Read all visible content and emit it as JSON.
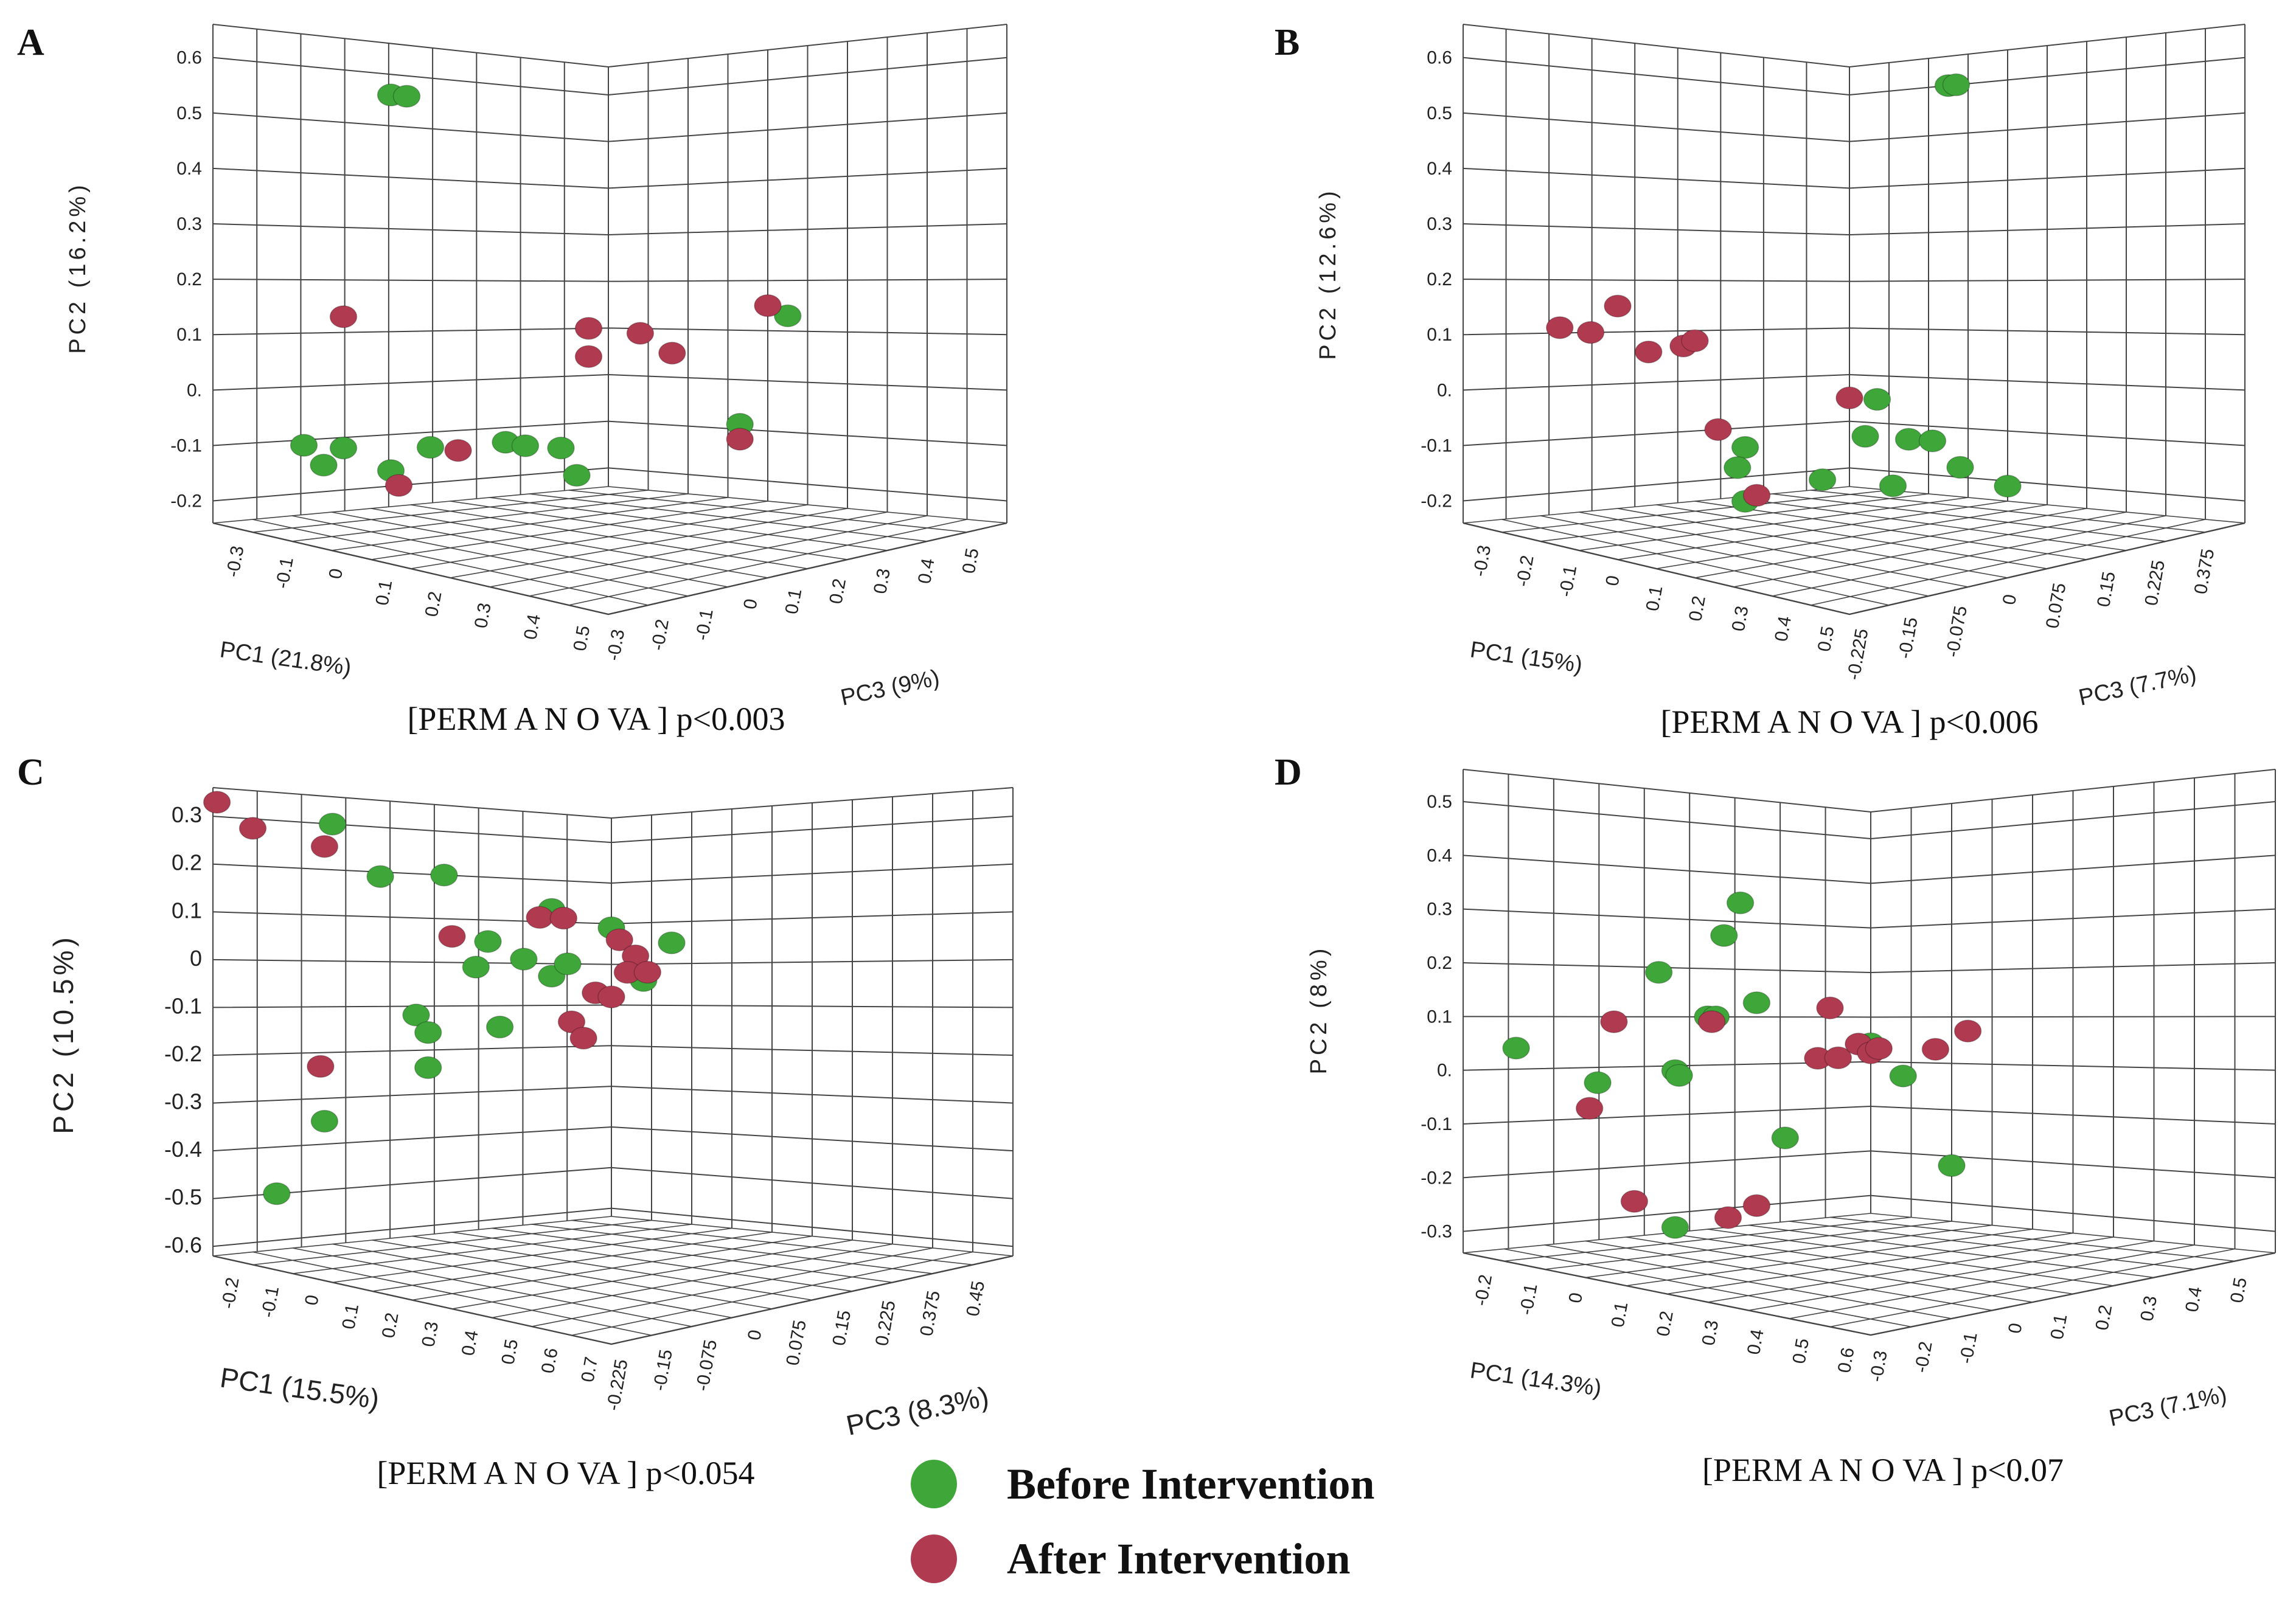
{
  "figure": {
    "type": "3d-pca-panels"
  },
  "colors": {
    "before": "#3fa63a",
    "after": "#b03a50",
    "grid": "#444444"
  },
  "legend": {
    "before_label": "Before Intervention",
    "after_label": "After Intervention"
  },
  "chart_data": [
    {
      "type": "scatter",
      "panel": "A",
      "caption": "[PERM A N O VA ] p<0.003",
      "axes": {
        "y": {
          "label": "PC2 (16.2%)",
          "ticks": [
            "0.6",
            "0.5",
            "0.4",
            "0.3",
            "0.2",
            "0.1",
            "0.",
            "-0.1",
            "-0.2"
          ]
        },
        "x": {
          "label": "PC1 (21.8%)",
          "ticks": [
            "-0.3",
            "-0.1",
            "0",
            "0.1",
            "0.2",
            "0.3",
            "0.4",
            "0.5"
          ]
        },
        "z": {
          "label": "PC3 (9%)",
          "ticks": [
            "-0.3",
            "-0.2",
            "-0.1",
            "0",
            "0.1",
            "0.2",
            "0.3",
            "0.4",
            "0.5"
          ]
        }
      },
      "groups": [
        {
          "name": "Before Intervention",
          "points": [
            {
              "pc2": 0.56,
              "u": 0.45,
              "v": 0.02
            },
            {
              "pc2": 0.56,
              "u": 0.49,
              "v": 0.02
            },
            {
              "pc2": -0.11,
              "u": 0.23,
              "v": 0.05
            },
            {
              "pc2": -0.12,
              "u": 0.33,
              "v": 0.07
            },
            {
              "pc2": -0.15,
              "u": 0.28,
              "v": 0.09
            },
            {
              "pc2": -0.17,
              "u": 0.45,
              "v": 0.09
            },
            {
              "pc2": -0.13,
              "u": 0.55,
              "v": 0.12
            },
            {
              "pc2": -0.13,
              "u": 0.74,
              "v": 0.12
            },
            {
              "pc2": -0.14,
              "u": 0.79,
              "v": 0.13
            },
            {
              "pc2": -0.15,
              "u": 0.88,
              "v": 0.12
            },
            {
              "pc2": -0.21,
              "u": 0.92,
              "v": 0.15
            },
            {
              "pc2": 0.13,
              "u": 1.0,
              "v": 0.45
            },
            {
              "pc2": -0.09,
              "u": 1.0,
              "v": 0.33
            }
          ]
        },
        {
          "name": "After Intervention",
          "points": [
            {
              "pc2": 0.13,
              "u": 0.33,
              "v": 0.0
            },
            {
              "pc2": -0.2,
              "u": 0.47,
              "v": 0.08
            },
            {
              "pc2": -0.14,
              "u": 0.62,
              "v": 0.09
            },
            {
              "pc2": 0.1,
              "u": 0.95,
              "v": 0.0
            },
            {
              "pc2": 0.04,
              "u": 0.95,
              "v": 0.02
            },
            {
              "pc2": 0.09,
              "u": 1.0,
              "v": 0.08
            },
            {
              "pc2": 0.05,
              "u": 1.0,
              "v": 0.16
            },
            {
              "pc2": 0.15,
              "u": 1.0,
              "v": 0.4
            },
            {
              "pc2": -0.12,
              "u": 1.0,
              "v": 0.33
            }
          ]
        }
      ]
    },
    {
      "type": "scatter",
      "panel": "B",
      "caption": "[PERM A N O VA ] p<0.006",
      "axes": {
        "y": {
          "label": "PC2 (12.6%)",
          "ticks": [
            "0.6",
            "0.5",
            "0.4",
            "0.3",
            "0.2",
            "0.1",
            "0.",
            "-0.1",
            "-0.2"
          ]
        },
        "x": {
          "label": "PC1 (15%)",
          "ticks": [
            "-0.3",
            "-0.2",
            "-0.1",
            "0",
            "0.1",
            "0.2",
            "0.3",
            "0.4",
            "0.5"
          ]
        },
        "z": {
          "label": "PC3 (7.7%)",
          "ticks": [
            "-0.225",
            "-0.15",
            "-0.075",
            "0",
            "0.075",
            "0.15",
            "0.225",
            "0.375"
          ]
        }
      },
      "groups": [
        {
          "name": "Before Intervention",
          "points": [
            {
              "pc2": 0.6,
              "u": 1.0,
              "v": 0.25
            },
            {
              "pc2": 0.6,
              "u": 1.0,
              "v": 0.27
            },
            {
              "pc2": -0.14,
              "u": 0.73,
              "v": 0.05
            },
            {
              "pc2": -0.18,
              "u": 0.71,
              "v": 0.06
            },
            {
              "pc2": -0.25,
              "u": 0.73,
              "v": 0.12
            },
            {
              "pc2": -0.22,
              "u": 0.93,
              "v": 0.12
            },
            {
              "pc2": -0.13,
              "u": 1.0,
              "v": 0.04
            },
            {
              "pc2": -0.05,
              "u": 1.0,
              "v": 0.07
            },
            {
              "pc2": -0.13,
              "u": 1.0,
              "v": 0.15
            },
            {
              "pc2": -0.13,
              "u": 1.0,
              "v": 0.21
            },
            {
              "pc2": -0.18,
              "u": 1.0,
              "v": 0.28
            },
            {
              "pc2": -0.21,
              "u": 1.0,
              "v": 0.4
            },
            {
              "pc2": -0.23,
              "u": 1.0,
              "v": 0.11
            }
          ]
        },
        {
          "name": "After Intervention",
          "points": [
            {
              "pc2": 0.11,
              "u": 0.25,
              "v": 0.0
            },
            {
              "pc2": 0.1,
              "u": 0.33,
              "v": 0.0
            },
            {
              "pc2": 0.15,
              "u": 0.4,
              "v": 0.0
            },
            {
              "pc2": 0.06,
              "u": 0.48,
              "v": 0.0
            },
            {
              "pc2": 0.07,
              "u": 0.57,
              "v": 0.0
            },
            {
              "pc2": 0.08,
              "u": 0.6,
              "v": 0.0
            },
            {
              "pc2": -0.1,
              "u": 0.66,
              "v": 0.0
            },
            {
              "pc2": -0.24,
              "u": 0.76,
              "v": 0.12
            },
            {
              "pc2": -0.05,
              "u": 1.0,
              "v": 0.0
            }
          ]
        }
      ]
    },
    {
      "type": "scatter",
      "panel": "C",
      "caption": "[PERM A N O VA ] p<0.054",
      "axes": {
        "y": {
          "label": "PC2 (10.5%)",
          "ticks": [
            "0.3",
            "0.2",
            "0.1",
            "0",
            "-0.1",
            "-0.2",
            "-0.3",
            "-0.4",
            "-0.5",
            "-0.6"
          ]
        },
        "x": {
          "label": "PC1 (15.5%)",
          "ticks": [
            "-0.2",
            "-0.1",
            "0",
            "0.1",
            "0.2",
            "0.3",
            "0.4",
            "0.5",
            "0.6",
            "0.7"
          ]
        },
        "z": {
          "label": "PC3 (8.3%)",
          "ticks": [
            "-0.225",
            "-0.15",
            "-0.075",
            "0",
            "0.075",
            "0.15",
            "0.225",
            "0.375",
            "0.45"
          ]
        }
      },
      "groups": [
        {
          "name": "Before Intervention",
          "points": [
            {
              "pc2": 0.3,
              "u": 0.3,
              "v": 0.0
            },
            {
              "pc2": 0.19,
              "u": 0.42,
              "v": 0.0
            },
            {
              "pc2": 0.2,
              "u": 0.58,
              "v": 0.0
            },
            {
              "pc2": 0.05,
              "u": 0.69,
              "v": 0.0
            },
            {
              "pc2": 0.13,
              "u": 0.85,
              "v": 0.0
            },
            {
              "pc2": -0.01,
              "u": 0.66,
              "v": 0.0
            },
            {
              "pc2": 0.01,
              "u": 0.78,
              "v": 0.0
            },
            {
              "pc2": -0.03,
              "u": 0.85,
              "v": 0.0
            },
            {
              "pc2": 0.0,
              "u": 0.89,
              "v": 0.0
            },
            {
              "pc2": -0.12,
              "u": 0.51,
              "v": 0.0
            },
            {
              "pc2": -0.16,
              "u": 0.54,
              "v": 0.0
            },
            {
              "pc2": -0.24,
              "u": 0.54,
              "v": 0.0
            },
            {
              "pc2": -0.15,
              "u": 0.72,
              "v": 0.0
            },
            {
              "pc2": -0.35,
              "u": 0.28,
              "v": 0.0
            },
            {
              "pc2": -0.5,
              "u": 0.16,
              "v": 0.0
            },
            {
              "pc2": 0.09,
              "u": 1.0,
              "v": 0.0
            },
            {
              "pc2": 0.05,
              "u": 1.0,
              "v": 0.15
            },
            {
              "pc2": -0.04,
              "u": 1.0,
              "v": 0.08
            }
          ]
        },
        {
          "name": "After Intervention",
          "points": [
            {
              "pc2": 0.33,
              "u": 0.01,
              "v": 0.0
            },
            {
              "pc2": 0.28,
              "u": 0.1,
              "v": 0.0
            },
            {
              "pc2": 0.25,
              "u": 0.28,
              "v": 0.0
            },
            {
              "pc2": 0.06,
              "u": 0.6,
              "v": 0.0
            },
            {
              "pc2": 0.11,
              "u": 0.82,
              "v": 0.0
            },
            {
              "pc2": 0.11,
              "u": 0.88,
              "v": 0.0
            },
            {
              "pc2": -0.07,
              "u": 0.96,
              "v": 0.0
            },
            {
              "pc2": -0.14,
              "u": 0.9,
              "v": 0.0
            },
            {
              "pc2": -0.18,
              "u": 0.93,
              "v": 0.0
            },
            {
              "pc2": -0.23,
              "u": 0.27,
              "v": 0.0
            },
            {
              "pc2": 0.06,
              "u": 1.0,
              "v": 0.02
            },
            {
              "pc2": 0.02,
              "u": 1.0,
              "v": 0.06
            },
            {
              "pc2": -0.02,
              "u": 1.0,
              "v": 0.04
            },
            {
              "pc2": -0.02,
              "u": 1.0,
              "v": 0.09
            },
            {
              "pc2": -0.08,
              "u": 1.0,
              "v": 0.0
            }
          ]
        }
      ]
    },
    {
      "type": "scatter",
      "panel": "D",
      "caption": "[PERM A N O VA ] p<0.07",
      "axes": {
        "y": {
          "label": "PC2 (8%)",
          "ticks": [
            "0.5",
            "0.4",
            "0.3",
            "0.2",
            "0.1",
            "0.",
            "-0.1",
            "-0.2",
            "-0.3"
          ]
        },
        "x": {
          "label": "PC1 (14.3%)",
          "ticks": [
            "-0.2",
            "-0.1",
            "0",
            "0.1",
            "0.2",
            "0.3",
            "0.4",
            "0.5",
            "0.6"
          ]
        },
        "z": {
          "label": "PC3 (7.1%)",
          "ticks": [
            "-0.3",
            "-0.2",
            "-0.1",
            "0",
            "0.1",
            "0.2",
            "0.3",
            "0.4",
            "0.5"
          ]
        }
      },
      "groups": [
        {
          "name": "Before Intervention",
          "points": [
            {
              "pc2": 0.04,
              "u": 0.13,
              "v": 0.0
            },
            {
              "pc2": -0.03,
              "u": 0.33,
              "v": 0.0
            },
            {
              "pc2": 0.19,
              "u": 0.48,
              "v": 0.0
            },
            {
              "pc2": 0.34,
              "u": 0.68,
              "v": 0.0
            },
            {
              "pc2": 0.27,
              "u": 0.64,
              "v": 0.0
            },
            {
              "pc2": 0.1,
              "u": 0.6,
              "v": 0.0
            },
            {
              "pc2": 0.1,
              "u": 0.62,
              "v": 0.0
            },
            {
              "pc2": 0.13,
              "u": 0.72,
              "v": 0.0
            },
            {
              "pc2": -0.01,
              "u": 0.52,
              "v": 0.0
            },
            {
              "pc2": -0.02,
              "u": 0.53,
              "v": 0.0
            },
            {
              "pc2": -0.16,
              "u": 0.79,
              "v": 0.0
            },
            {
              "pc2": -0.33,
              "u": 0.52,
              "v": 0.0
            },
            {
              "pc2": 0.04,
              "u": 1.0,
              "v": 0.0
            },
            {
              "pc2": -0.03,
              "u": 1.0,
              "v": 0.08
            },
            {
              "pc2": -0.22,
              "u": 1.0,
              "v": 0.2
            }
          ]
        },
        {
          "name": "After Intervention",
          "points": [
            {
              "pc2": 0.09,
              "u": 0.37,
              "v": 0.0
            },
            {
              "pc2": -0.08,
              "u": 0.31,
              "v": 0.0
            },
            {
              "pc2": 0.09,
              "u": 0.61,
              "v": 0.0
            },
            {
              "pc2": 0.12,
              "u": 0.9,
              "v": 0.0
            },
            {
              "pc2": 0.01,
              "u": 0.87,
              "v": 0.0
            },
            {
              "pc2": 0.01,
              "u": 0.92,
              "v": 0.0
            },
            {
              "pc2": -0.27,
              "u": 0.42,
              "v": 0.0
            },
            {
              "pc2": -0.32,
              "u": 0.65,
              "v": 0.0
            },
            {
              "pc2": -0.3,
              "u": 0.72,
              "v": 0.0
            },
            {
              "pc2": 0.04,
              "u": 0.97,
              "v": 0.0
            },
            {
              "pc2": 0.02,
              "u": 1.0,
              "v": 0.0
            },
            {
              "pc2": 0.03,
              "u": 1.0,
              "v": 0.02
            },
            {
              "pc2": 0.03,
              "u": 1.0,
              "v": 0.16
            },
            {
              "pc2": 0.07,
              "u": 1.0,
              "v": 0.24
            }
          ]
        }
      ]
    }
  ]
}
